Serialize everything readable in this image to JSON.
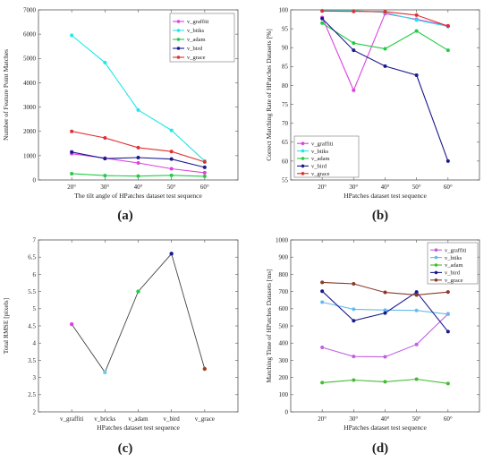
{
  "chart_data": [
    {
      "type": "line",
      "caption": "(a)",
      "xlabel": "The tilt angle of HPatches dataset test sequence",
      "ylabel": "Number of Feature Point Matches",
      "categories": [
        "20°",
        "30°",
        "40°",
        "50°",
        "60°"
      ],
      "ylim": [
        0,
        7000
      ],
      "yticks": [
        0,
        1000,
        2000,
        3000,
        4000,
        5000,
        6000,
        7000
      ],
      "grid": false,
      "legend": "top-right",
      "series": [
        {
          "name": "v_graffiti",
          "color": "#e040e0",
          "values": [
            1080,
            900,
            700,
            460,
            300
          ]
        },
        {
          "name": "v_btiks",
          "color": "#22e6e6",
          "values": [
            5950,
            4830,
            2880,
            2040,
            780
          ]
        },
        {
          "name": "v_adam",
          "color": "#22cc44",
          "values": [
            260,
            180,
            160,
            190,
            150
          ]
        },
        {
          "name": "v_bird",
          "color": "#1a1a8c",
          "values": [
            1150,
            880,
            920,
            860,
            520
          ]
        },
        {
          "name": "v_grace",
          "color": "#e03030",
          "values": [
            2000,
            1730,
            1330,
            1170,
            740
          ]
        }
      ]
    },
    {
      "type": "line",
      "caption": "(b)",
      "xlabel": "HPatches dataset test sequence",
      "ylabel": "Correct Matching Rate of HPatches Datasets [%]",
      "categories": [
        "20°",
        "30°",
        "40°",
        "50°",
        "60°"
      ],
      "ylim": [
        55,
        100
      ],
      "yticks": [
        55,
        60,
        65,
        70,
        75,
        80,
        85,
        90,
        95,
        100
      ],
      "grid": false,
      "legend": "bottom-left",
      "series": [
        {
          "name": "v_graffiti",
          "color": "#e040e0",
          "values": [
            98,
            78.7,
            99,
            97.5,
            95.8
          ]
        },
        {
          "name": "v_btiks",
          "color": "#22e6e6",
          "values": [
            99.8,
            99.8,
            99.3,
            97.3,
            95.6
          ]
        },
        {
          "name": "v_adam",
          "color": "#22cc44",
          "values": [
            96.5,
            91.2,
            89.7,
            94.4,
            89.3
          ]
        },
        {
          "name": "v_bird",
          "color": "#1a1a8c",
          "values": [
            97.7,
            89.3,
            85.1,
            82.7,
            60
          ]
        },
        {
          "name": "v_grace",
          "color": "#e03030",
          "values": [
            99.7,
            99.6,
            99.5,
            98.6,
            95.7
          ]
        }
      ]
    },
    {
      "type": "line",
      "caption": "(c)",
      "xlabel": "HPatches dataset test sequence",
      "ylabel": "Total RMSE [pixels]",
      "categories": [
        "v_graffiti",
        "v_bricks",
        "v_adam",
        "v_bird",
        "v_grace"
      ],
      "ylim": [
        2,
        7
      ],
      "yticks": [
        2,
        2.5,
        3,
        3.5,
        4,
        4.5,
        5,
        5.5,
        6,
        6.5,
        7
      ],
      "grid": false,
      "line_color": "#444444",
      "values": [
        4.55,
        3.15,
        5.5,
        6.6,
        3.25
      ],
      "point_colors": [
        "#e040e0",
        "#66ccee",
        "#22cc44",
        "#1a1a8c",
        "#a04020"
      ]
    },
    {
      "type": "line",
      "caption": "(d)",
      "xlabel": "HPatches dataset test sequence",
      "ylabel": "Matching Time of HPatches Datasets [ms]",
      "categories": [
        "20°",
        "30°",
        "40°",
        "50°",
        "60°"
      ],
      "ylim": [
        0,
        1000
      ],
      "yticks": [
        0,
        100,
        200,
        300,
        400,
        500,
        600,
        700,
        800,
        900,
        1000
      ],
      "grid": false,
      "legend": "top-right",
      "series": [
        {
          "name": "v_graffiti",
          "color": "#c060e0",
          "values": [
            375,
            322,
            320,
            392,
            570
          ]
        },
        {
          "name": "v_btiks",
          "color": "#66bbee",
          "values": [
            638,
            597,
            592,
            590,
            568
          ]
        },
        {
          "name": "v_adam",
          "color": "#44bb33",
          "values": [
            170,
            185,
            175,
            190,
            165
          ]
        },
        {
          "name": "v_bird",
          "color": "#1a1a8c",
          "values": [
            702,
            530,
            575,
            697,
            467
          ]
        },
        {
          "name": "v_grace",
          "color": "#8a3a2a",
          "values": [
            753,
            745,
            695,
            680,
            697
          ]
        }
      ]
    }
  ]
}
